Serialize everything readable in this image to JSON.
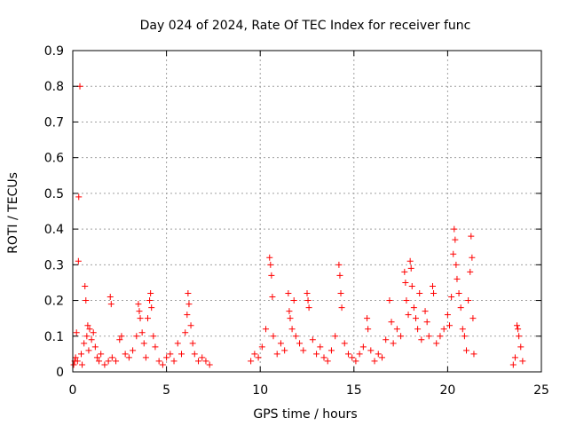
{
  "chart_data": {
    "type": "scatter",
    "title": "Day 024 of 2024, Rate Of TEC Index for receiver func",
    "xlabel": "GPS time / hours",
    "ylabel": "ROTI / TECUs",
    "xlim": [
      0,
      25
    ],
    "ylim": [
      0,
      0.9
    ],
    "x_ticks": [
      0,
      5,
      10,
      15,
      20,
      25
    ],
    "x_tick_labels": [
      "0",
      "5",
      "10",
      "15",
      "20",
      "25"
    ],
    "y_ticks": [
      0,
      0.1,
      0.2,
      0.3,
      0.4,
      0.5,
      0.6,
      0.7,
      0.8,
      0.9
    ],
    "y_tick_labels": [
      "0",
      "0.1",
      "0.2",
      "0.3",
      "0.4",
      "0.5",
      "0.6",
      "0.7",
      "0.8",
      "0.9"
    ],
    "grid": true,
    "legend": "none",
    "marker": "+",
    "color": "#ff0000",
    "series": [
      {
        "points": [
          [
            0.05,
            0.02
          ],
          [
            0.1,
            0.03
          ],
          [
            0.15,
            0.04
          ],
          [
            0.2,
            0.11
          ],
          [
            0.25,
            0.03
          ],
          [
            0.3,
            0.31
          ],
          [
            0.32,
            0.49
          ],
          [
            0.38,
            0.8
          ],
          [
            0.45,
            0.05
          ],
          [
            0.5,
            0.02
          ],
          [
            0.6,
            0.08
          ],
          [
            0.65,
            0.24
          ],
          [
            0.7,
            0.2
          ],
          [
            0.75,
            0.1
          ],
          [
            0.8,
            0.13
          ],
          [
            0.85,
            0.06
          ],
          [
            0.9,
            0.12
          ],
          [
            1.0,
            0.09
          ],
          [
            1.1,
            0.11
          ],
          [
            1.2,
            0.07
          ],
          [
            1.3,
            0.04
          ],
          [
            1.4,
            0.03
          ],
          [
            1.5,
            0.05
          ],
          [
            1.7,
            0.02
          ],
          [
            1.9,
            0.03
          ],
          [
            2.0,
            0.21
          ],
          [
            2.05,
            0.19
          ],
          [
            2.1,
            0.04
          ],
          [
            2.3,
            0.03
          ],
          [
            2.5,
            0.09
          ],
          [
            2.6,
            0.1
          ],
          [
            2.8,
            0.05
          ],
          [
            3.0,
            0.04
          ],
          [
            3.2,
            0.06
          ],
          [
            3.4,
            0.1
          ],
          [
            3.5,
            0.19
          ],
          [
            3.55,
            0.17
          ],
          [
            3.6,
            0.15
          ],
          [
            3.7,
            0.11
          ],
          [
            3.8,
            0.08
          ],
          [
            3.9,
            0.04
          ],
          [
            4.0,
            0.15
          ],
          [
            4.1,
            0.2
          ],
          [
            4.15,
            0.22
          ],
          [
            4.2,
            0.18
          ],
          [
            4.3,
            0.1
          ],
          [
            4.4,
            0.07
          ],
          [
            4.6,
            0.03
          ],
          [
            4.8,
            0.02
          ],
          [
            5.0,
            0.04
          ],
          [
            5.2,
            0.05
          ],
          [
            5.4,
            0.03
          ],
          [
            5.6,
            0.08
          ],
          [
            5.8,
            0.05
          ],
          [
            6.0,
            0.11
          ],
          [
            6.1,
            0.16
          ],
          [
            6.15,
            0.22
          ],
          [
            6.2,
            0.19
          ],
          [
            6.3,
            0.13
          ],
          [
            6.4,
            0.08
          ],
          [
            6.5,
            0.05
          ],
          [
            6.7,
            0.03
          ],
          [
            6.9,
            0.04
          ],
          [
            7.1,
            0.03
          ],
          [
            7.3,
            0.02
          ],
          [
            9.5,
            0.03
          ],
          [
            9.7,
            0.05
          ],
          [
            9.9,
            0.04
          ],
          [
            10.1,
            0.07
          ],
          [
            10.3,
            0.12
          ],
          [
            10.5,
            0.32
          ],
          [
            10.55,
            0.3
          ],
          [
            10.6,
            0.27
          ],
          [
            10.65,
            0.21
          ],
          [
            10.7,
            0.1
          ],
          [
            10.9,
            0.05
          ],
          [
            11.1,
            0.08
          ],
          [
            11.3,
            0.06
          ],
          [
            11.5,
            0.22
          ],
          [
            11.55,
            0.17
          ],
          [
            11.6,
            0.15
          ],
          [
            11.7,
            0.12
          ],
          [
            11.8,
            0.2
          ],
          [
            11.9,
            0.1
          ],
          [
            12.1,
            0.08
          ],
          [
            12.3,
            0.06
          ],
          [
            12.5,
            0.22
          ],
          [
            12.55,
            0.2
          ],
          [
            12.6,
            0.18
          ],
          [
            12.8,
            0.09
          ],
          [
            13.0,
            0.05
          ],
          [
            13.2,
            0.07
          ],
          [
            13.4,
            0.04
          ],
          [
            13.6,
            0.03
          ],
          [
            13.8,
            0.06
          ],
          [
            14.0,
            0.1
          ],
          [
            14.2,
            0.3
          ],
          [
            14.25,
            0.27
          ],
          [
            14.3,
            0.22
          ],
          [
            14.35,
            0.18
          ],
          [
            14.5,
            0.08
          ],
          [
            14.7,
            0.05
          ],
          [
            14.9,
            0.04
          ],
          [
            15.1,
            0.03
          ],
          [
            15.3,
            0.05
          ],
          [
            15.5,
            0.07
          ],
          [
            15.7,
            0.15
          ],
          [
            15.75,
            0.12
          ],
          [
            15.9,
            0.06
          ],
          [
            16.1,
            0.03
          ],
          [
            16.3,
            0.05
          ],
          [
            16.5,
            0.04
          ],
          [
            16.7,
            0.09
          ],
          [
            16.9,
            0.2
          ],
          [
            17.0,
            0.14
          ],
          [
            17.1,
            0.08
          ],
          [
            17.3,
            0.12
          ],
          [
            17.5,
            0.1
          ],
          [
            17.7,
            0.28
          ],
          [
            17.75,
            0.25
          ],
          [
            17.8,
            0.2
          ],
          [
            17.9,
            0.16
          ],
          [
            18.0,
            0.31
          ],
          [
            18.05,
            0.29
          ],
          [
            18.1,
            0.24
          ],
          [
            18.2,
            0.18
          ],
          [
            18.3,
            0.15
          ],
          [
            18.4,
            0.12
          ],
          [
            18.5,
            0.22
          ],
          [
            18.6,
            0.09
          ],
          [
            18.8,
            0.17
          ],
          [
            18.9,
            0.14
          ],
          [
            19.0,
            0.1
          ],
          [
            19.2,
            0.24
          ],
          [
            19.25,
            0.22
          ],
          [
            19.4,
            0.08
          ],
          [
            19.6,
            0.1
          ],
          [
            19.8,
            0.12
          ],
          [
            20.0,
            0.16
          ],
          [
            20.1,
            0.13
          ],
          [
            20.2,
            0.21
          ],
          [
            20.3,
            0.33
          ],
          [
            20.35,
            0.4
          ],
          [
            20.4,
            0.37
          ],
          [
            20.45,
            0.3
          ],
          [
            20.5,
            0.26
          ],
          [
            20.6,
            0.22
          ],
          [
            20.7,
            0.18
          ],
          [
            20.8,
            0.12
          ],
          [
            20.9,
            0.1
          ],
          [
            21.0,
            0.06
          ],
          [
            21.1,
            0.2
          ],
          [
            21.2,
            0.28
          ],
          [
            21.25,
            0.38
          ],
          [
            21.3,
            0.32
          ],
          [
            21.35,
            0.15
          ],
          [
            21.4,
            0.05
          ],
          [
            23.5,
            0.02
          ],
          [
            23.6,
            0.04
          ],
          [
            23.7,
            0.13
          ],
          [
            23.75,
            0.12
          ],
          [
            23.8,
            0.1
          ],
          [
            23.9,
            0.07
          ],
          [
            24.0,
            0.03
          ]
        ]
      }
    ]
  }
}
